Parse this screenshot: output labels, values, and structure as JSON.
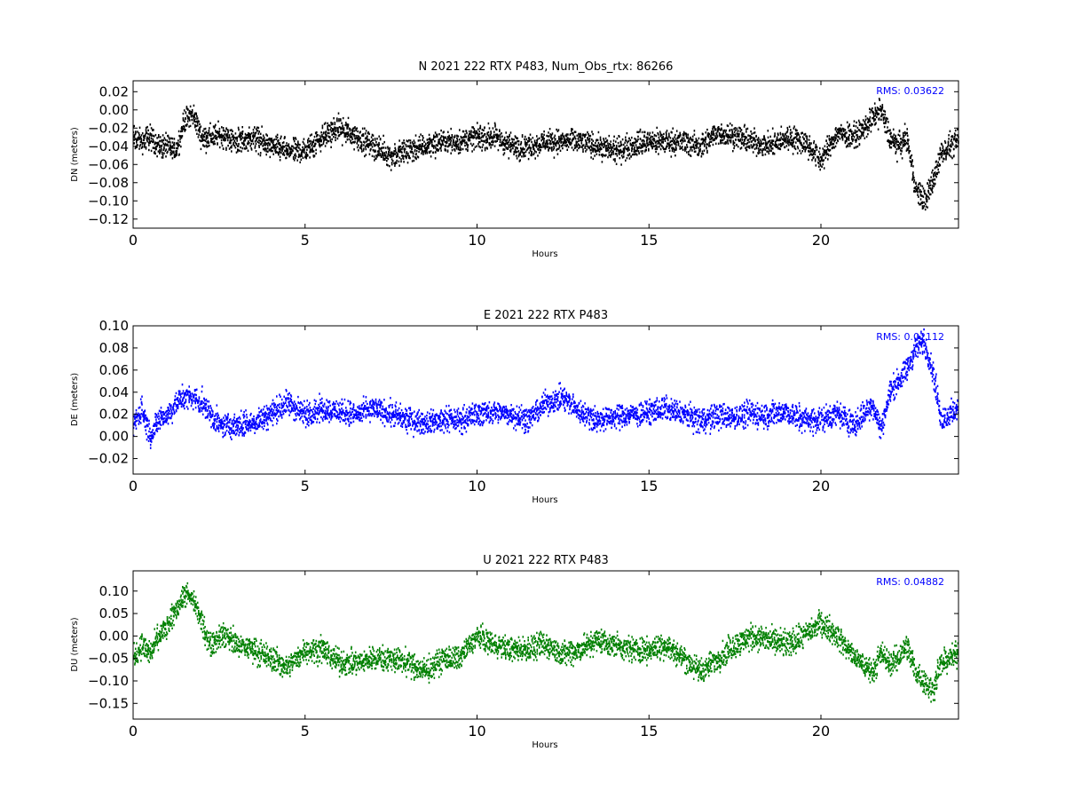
{
  "chart_data": [
    {
      "type": "scatter",
      "title": "N 2021 222 RTX  P483, Num_Obs_rtx: 86266",
      "xlabel": "Hours",
      "ylabel": "DN (meters)",
      "xlim": [
        0,
        24
      ],
      "ylim": [
        -0.13,
        0.032
      ],
      "xticks": [
        "0",
        "5",
        "10",
        "15",
        "20"
      ],
      "xtick_values": [
        0,
        5,
        10,
        15,
        20
      ],
      "yticks": [
        "0.02",
        "0.00",
        "−0.02",
        "−0.04",
        "−0.06",
        "−0.08",
        "−0.10",
        "−0.12"
      ],
      "ytick_values": [
        0.02,
        0.0,
        -0.02,
        -0.04,
        -0.06,
        -0.08,
        -0.1,
        -0.12
      ],
      "color": "#000000",
      "annotation": "RMS:  0.03622",
      "annotation_color": "#0000ff",
      "series": [
        {
          "x": [
            0,
            0.25,
            0.5,
            0.75,
            1,
            1.25,
            1.5,
            1.75,
            2,
            2.25,
            2.5,
            2.75,
            3,
            3.5,
            4,
            4.5,
            5,
            5.5,
            6,
            6.5,
            7,
            7.5,
            8,
            8.5,
            9,
            9.5,
            10,
            10.5,
            11,
            11.5,
            12,
            12.5,
            13,
            13.5,
            14,
            14.5,
            15,
            15.5,
            16,
            16.5,
            17,
            17.5,
            18,
            18.5,
            19,
            19.5,
            20,
            20.5,
            21,
            21.5,
            21.75,
            22,
            22.25,
            22.5,
            22.75,
            23,
            23.25,
            23.5,
            23.75,
            24
          ],
          "y": [
            -0.03,
            -0.035,
            -0.03,
            -0.04,
            -0.04,
            -0.045,
            -0.01,
            -0.005,
            -0.03,
            -0.03,
            -0.028,
            -0.03,
            -0.035,
            -0.03,
            -0.04,
            -0.045,
            -0.045,
            -0.03,
            -0.02,
            -0.03,
            -0.04,
            -0.05,
            -0.045,
            -0.04,
            -0.035,
            -0.035,
            -0.03,
            -0.03,
            -0.04,
            -0.04,
            -0.035,
            -0.035,
            -0.035,
            -0.04,
            -0.045,
            -0.04,
            -0.035,
            -0.035,
            -0.035,
            -0.04,
            -0.025,
            -0.03,
            -0.035,
            -0.04,
            -0.03,
            -0.035,
            -0.055,
            -0.025,
            -0.03,
            -0.01,
            0.0,
            -0.03,
            -0.04,
            -0.03,
            -0.085,
            -0.1,
            -0.08,
            -0.045,
            -0.04,
            -0.035
          ],
          "spread": 0.012
        }
      ]
    },
    {
      "type": "scatter",
      "title": "E 2021 222 RTX  P483",
      "xlabel": "Hours",
      "ylabel": "DE (meters)",
      "xlim": [
        0,
        24
      ],
      "ylim": [
        -0.034,
        0.1
      ],
      "xticks": [
        "0",
        "5",
        "10",
        "15",
        "20"
      ],
      "xtick_values": [
        0,
        5,
        10,
        15,
        20
      ],
      "yticks": [
        "0.10",
        "0.08",
        "0.06",
        "0.04",
        "0.02",
        "0.00",
        "−0.02"
      ],
      "ytick_values": [
        0.1,
        0.08,
        0.06,
        0.04,
        0.02,
        0.0,
        -0.02
      ],
      "color": "#0000ff",
      "annotation": "RMS:  0.02112",
      "annotation_color": "#0000ff",
      "series": [
        {
          "x": [
            0,
            0.25,
            0.5,
            0.75,
            1,
            1.25,
            1.5,
            1.75,
            2,
            2.25,
            2.5,
            2.75,
            3,
            3.5,
            4,
            4.5,
            5,
            5.5,
            6,
            6.5,
            7,
            7.5,
            8,
            8.5,
            9,
            9.5,
            10,
            10.5,
            11,
            11.5,
            12,
            12.5,
            13,
            13.5,
            14,
            14.5,
            15,
            15.5,
            16,
            16.5,
            17,
            17.5,
            18,
            18.5,
            19,
            19.5,
            20,
            20.5,
            21,
            21.5,
            21.75,
            22,
            22.25,
            22.5,
            22.75,
            23,
            23.25,
            23.5,
            23.75,
            24
          ],
          "y": [
            0.01,
            0.025,
            0.0,
            0.015,
            0.02,
            0.03,
            0.035,
            0.035,
            0.03,
            0.02,
            0.01,
            0.01,
            0.01,
            0.012,
            0.02,
            0.03,
            0.02,
            0.025,
            0.022,
            0.02,
            0.025,
            0.02,
            0.015,
            0.012,
            0.015,
            0.015,
            0.02,
            0.022,
            0.02,
            0.015,
            0.03,
            0.035,
            0.022,
            0.015,
            0.018,
            0.02,
            0.022,
            0.025,
            0.02,
            0.015,
            0.018,
            0.018,
            0.02,
            0.02,
            0.022,
            0.015,
            0.015,
            0.02,
            0.01,
            0.03,
            0.005,
            0.04,
            0.05,
            0.06,
            0.08,
            0.085,
            0.06,
            0.015,
            0.02,
            0.025
          ],
          "spread": 0.01
        }
      ]
    },
    {
      "type": "scatter",
      "title": "U 2021 222 RTX  P483",
      "xlabel": "Hours",
      "ylabel": "DU (meters)",
      "xlim": [
        0,
        24
      ],
      "ylim": [
        -0.185,
        0.145
      ],
      "xticks": [
        "0",
        "5",
        "10",
        "15",
        "20"
      ],
      "xtick_values": [
        0,
        5,
        10,
        15,
        20
      ],
      "yticks": [
        "0.10",
        "0.05",
        "0.00",
        "−0.05",
        "−0.10",
        "−0.15"
      ],
      "ytick_values": [
        0.1,
        0.05,
        0.0,
        -0.05,
        -0.1,
        -0.15
      ],
      "color": "#008000",
      "annotation": "RMS:  0.04882",
      "annotation_color": "#0000ff",
      "series": [
        {
          "x": [
            0,
            0.25,
            0.5,
            0.75,
            1,
            1.25,
            1.5,
            1.75,
            2,
            2.25,
            2.5,
            2.75,
            3,
            3.5,
            4,
            4.5,
            5,
            5.5,
            6,
            6.5,
            7,
            7.5,
            8,
            8.5,
            9,
            9.5,
            10,
            10.5,
            11,
            11.5,
            12,
            12.5,
            13,
            13.5,
            14,
            14.5,
            15,
            15.5,
            16,
            16.5,
            17,
            17.5,
            18,
            18.5,
            19,
            19.5,
            20,
            20.5,
            21,
            21.5,
            21.75,
            22,
            22.25,
            22.5,
            22.75,
            23,
            23.25,
            23.5,
            23.75,
            24
          ],
          "y": [
            -0.05,
            -0.02,
            -0.04,
            0.0,
            0.02,
            0.06,
            0.09,
            0.08,
            0.03,
            -0.02,
            0.0,
            0.0,
            -0.02,
            -0.03,
            -0.05,
            -0.07,
            -0.03,
            -0.03,
            -0.06,
            -0.06,
            -0.05,
            -0.05,
            -0.06,
            -0.08,
            -0.05,
            -0.05,
            0.0,
            -0.02,
            -0.03,
            -0.03,
            -0.02,
            -0.04,
            -0.03,
            -0.01,
            -0.02,
            -0.03,
            -0.03,
            -0.02,
            -0.05,
            -0.08,
            -0.05,
            -0.02,
            0.0,
            -0.01,
            -0.02,
            0.0,
            0.03,
            0.0,
            -0.05,
            -0.08,
            -0.04,
            -0.06,
            -0.05,
            -0.02,
            -0.08,
            -0.1,
            -0.12,
            -0.06,
            -0.05,
            -0.04
          ],
          "spread": 0.025
        }
      ]
    }
  ]
}
